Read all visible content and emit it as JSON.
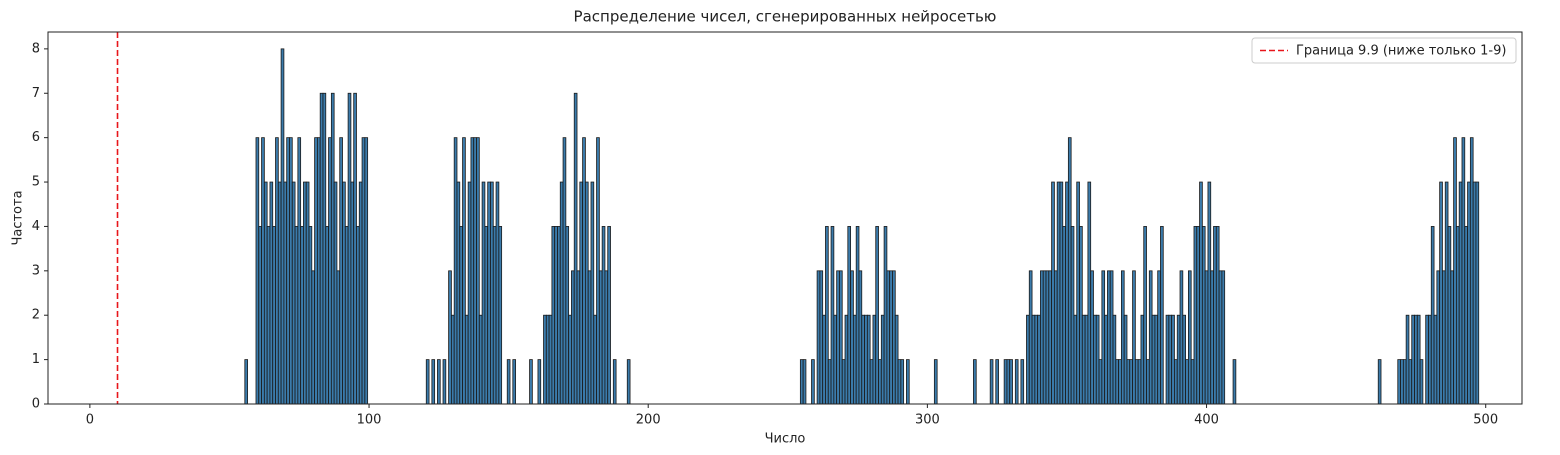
{
  "chart_data": {
    "type": "bar",
    "title": "Распределение чисел, сгенерированных нейросетью",
    "x_label": "Число",
    "y_label": "Частота",
    "x": [
      56,
      60,
      61,
      62,
      63,
      64,
      65,
      66,
      67,
      68,
      69,
      70,
      71,
      72,
      73,
      74,
      75,
      76,
      77,
      78,
      79,
      80,
      81,
      82,
      83,
      84,
      85,
      86,
      87,
      88,
      89,
      90,
      91,
      92,
      93,
      94,
      95,
      96,
      97,
      98,
      99,
      121,
      123,
      125,
      127,
      129,
      130,
      131,
      132,
      133,
      134,
      135,
      136,
      137,
      138,
      139,
      140,
      141,
      142,
      143,
      144,
      145,
      146,
      147,
      150,
      152,
      158,
      161,
      163,
      164,
      165,
      166,
      167,
      168,
      169,
      170,
      171,
      172,
      173,
      174,
      175,
      176,
      177,
      178,
      179,
      180,
      181,
      182,
      183,
      184,
      185,
      186,
      188,
      193,
      255,
      256,
      259,
      261,
      262,
      263,
      264,
      265,
      266,
      267,
      268,
      269,
      270,
      271,
      272,
      273,
      274,
      275,
      276,
      277,
      278,
      279,
      280,
      281,
      282,
      283,
      284,
      285,
      286,
      287,
      288,
      289,
      290,
      291,
      293,
      303,
      317,
      323,
      325,
      328,
      329,
      330,
      332,
      334,
      336,
      337,
      338,
      339,
      340,
      341,
      342,
      343,
      344,
      345,
      346,
      347,
      348,
      349,
      350,
      351,
      352,
      353,
      354,
      355,
      356,
      357,
      358,
      359,
      360,
      361,
      362,
      363,
      364,
      365,
      366,
      367,
      368,
      369,
      370,
      371,
      372,
      373,
      374,
      375,
      376,
      377,
      378,
      379,
      380,
      381,
      382,
      383,
      384,
      386,
      387,
      388,
      389,
      390,
      391,
      392,
      393,
      394,
      395,
      396,
      397,
      398,
      399,
      400,
      401,
      402,
      403,
      404,
      405,
      406,
      410,
      462,
      469,
      470,
      471,
      472,
      473,
      474,
      475,
      476,
      477,
      479,
      480,
      481,
      482,
      483,
      484,
      485,
      486,
      487,
      488,
      489,
      490,
      491,
      492,
      493,
      494,
      495,
      496,
      497
    ],
    "values": [
      1,
      6,
      4,
      6,
      5,
      4,
      5,
      4,
      6,
      5,
      8,
      5,
      6,
      6,
      5,
      4,
      6,
      4,
      5,
      5,
      4,
      3,
      6,
      6,
      7,
      7,
      4,
      6,
      7,
      5,
      3,
      6,
      5,
      4,
      7,
      5,
      7,
      4,
      5,
      6,
      6,
      1,
      1,
      1,
      1,
      3,
      2,
      6,
      5,
      4,
      6,
      2,
      5,
      6,
      6,
      6,
      2,
      5,
      4,
      5,
      5,
      4,
      5,
      4,
      1,
      1,
      1,
      1,
      2,
      2,
      2,
      4,
      4,
      4,
      5,
      6,
      4,
      2,
      3,
      7,
      3,
      5,
      6,
      5,
      3,
      5,
      2,
      6,
      3,
      4,
      3,
      4,
      1,
      1,
      1,
      1,
      1,
      3,
      3,
      2,
      4,
      1,
      4,
      2,
      3,
      3,
      1,
      2,
      4,
      3,
      2,
      4,
      3,
      2,
      2,
      2,
      1,
      2,
      4,
      1,
      2,
      4,
      3,
      3,
      3,
      2,
      1,
      1,
      1,
      1,
      1,
      1,
      1,
      1,
      1,
      1,
      1,
      1,
      2,
      3,
      2,
      2,
      2,
      3,
      3,
      3,
      3,
      5,
      3,
      5,
      5,
      4,
      5,
      6,
      4,
      2,
      5,
      4,
      2,
      2,
      5,
      3,
      2,
      2,
      1,
      3,
      2,
      3,
      3,
      2,
      1,
      1,
      3,
      2,
      1,
      1,
      3,
      1,
      1,
      2,
      4,
      1,
      3,
      2,
      2,
      3,
      4,
      2,
      2,
      2,
      1,
      2,
      3,
      2,
      1,
      3,
      1,
      4,
      4,
      5,
      4,
      3,
      5,
      3,
      4,
      4,
      3,
      3,
      1,
      1,
      1,
      1,
      1,
      2,
      1,
      2,
      2,
      2,
      1,
      2,
      2,
      4,
      2,
      3,
      5,
      3,
      5,
      4,
      3,
      6,
      4,
      5,
      6,
      4,
      5,
      6,
      5,
      5
    ],
    "color": "#3b7bab",
    "edgecolor": "#1a1a1a",
    "vline": {
      "x": 9.9,
      "label": "Граница 9.9 (ниже только 1-9)",
      "color": "#e8161b"
    },
    "xlim": [
      -15,
      513
    ],
    "xticks": [
      0,
      100,
      200,
      300,
      400,
      500
    ],
    "ylim": [
      0,
      8.38
    ],
    "yticks": [
      0,
      1,
      2,
      3,
      4,
      5,
      6,
      7,
      8
    ],
    "legend": "upper right"
  }
}
